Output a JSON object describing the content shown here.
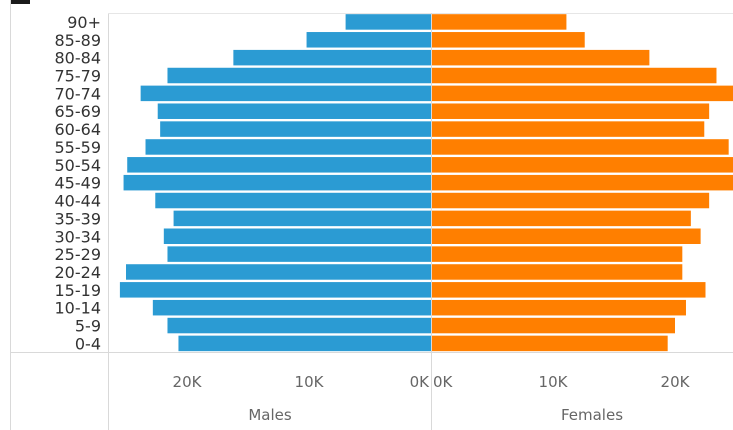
{
  "chart_data": {
    "type": "bar",
    "orientation": "horizontal",
    "layout": "population-pyramid",
    "categories": [
      "90+",
      "85-89",
      "80-84",
      "75-79",
      "70-74",
      "65-69",
      "60-64",
      "55-59",
      "50-54",
      "45-49",
      "40-44",
      "35-39",
      "30-34",
      "25-29",
      "20-24",
      "15-19",
      "10-14",
      "5-9",
      "0-4"
    ],
    "series": [
      {
        "name": "Males",
        "color": "#2b9bd3",
        "values": [
          7000,
          10200,
          16200,
          21600,
          23800,
          22400,
          22200,
          23400,
          24900,
          25200,
          22600,
          21100,
          21900,
          21600,
          25000,
          25500,
          22800,
          21600,
          20700
        ]
      },
      {
        "name": "Females",
        "color": "#ff7f00",
        "values": [
          11100,
          12600,
          17900,
          23400,
          25000,
          22800,
          22400,
          24400,
          25100,
          24900,
          22800,
          21300,
          22100,
          20600,
          20600,
          22500,
          20900,
          20000,
          19400
        ]
      }
    ],
    "x_ticks": {
      "males": [
        "20K",
        "10K",
        "0K"
      ],
      "females": [
        "0K",
        "10K",
        "20K"
      ]
    },
    "xlim_males": [
      25200,
      0
    ],
    "xlim_females": [
      0,
      25200
    ],
    "xlabel_males": "Males",
    "xlabel_females": "Females",
    "grid": false,
    "legend": "none"
  }
}
